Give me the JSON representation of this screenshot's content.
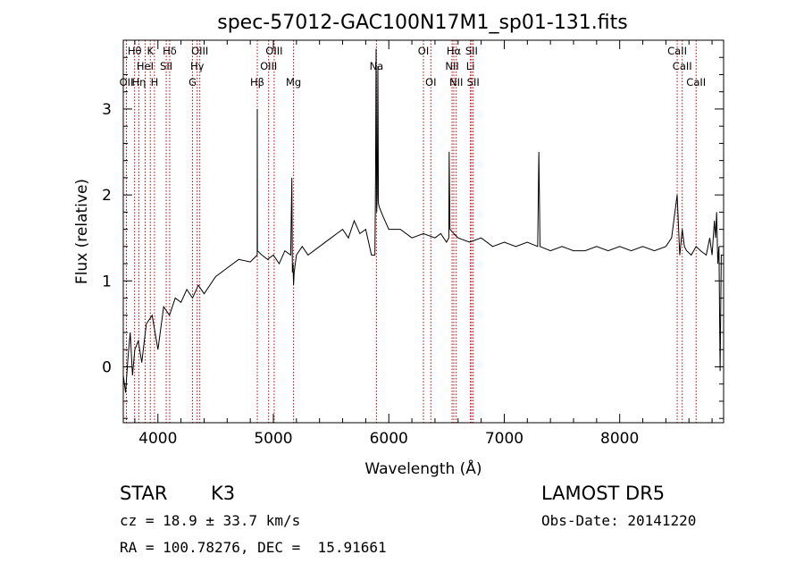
{
  "chart_data": {
    "type": "line",
    "title": "spec-57012-GAC100N17M1_sp01-131.fits",
    "xlabel": "Wavelength (Å)",
    "ylabel": "Flux (relative)",
    "xlim": [
      3700,
      8900
    ],
    "ylim": [
      -0.65,
      3.8
    ],
    "xticks": [
      4000,
      5000,
      6000,
      7000,
      8000
    ],
    "yticks": [
      0,
      1,
      2,
      3
    ],
    "grid": false,
    "series": [
      {
        "x": [
          3700,
          3720,
          3740,
          3760,
          3780,
          3800,
          3830,
          3860,
          3900,
          3950,
          4000,
          4050,
          4100,
          4150,
          4200,
          4250,
          4300,
          4350,
          4400,
          4500,
          4600,
          4700,
          4800,
          4860,
          4861,
          4862,
          4900,
          4950,
          5000,
          5050,
          5100,
          5150,
          5160,
          5165,
          5170,
          5175,
          5180,
          5200,
          5250,
          5300,
          5400,
          5500,
          5550,
          5600,
          5650,
          5700,
          5750,
          5800,
          5850,
          5880,
          5885,
          5890,
          5895,
          5900,
          5905,
          5910,
          5920,
          5950,
          6000,
          6100,
          6200,
          6300,
          6400,
          6450,
          6500,
          6520,
          6523,
          6530,
          6563,
          6600,
          6700,
          6800,
          6900,
          7000,
          7100,
          7200,
          7290,
          7300,
          7310,
          7400,
          7500,
          7600,
          7700,
          7800,
          7900,
          8000,
          8100,
          8200,
          8300,
          8400,
          8450,
          8498,
          8520,
          8542,
          8560,
          8580,
          8620,
          8662,
          8700,
          8750,
          8780,
          8800,
          8820,
          8830,
          8840,
          8850,
          8860,
          8870,
          8880,
          8900
        ],
        "y": [
          -0.1,
          -0.3,
          0.1,
          0.4,
          -0.1,
          0.2,
          0.3,
          0.05,
          0.5,
          0.6,
          0.2,
          0.7,
          0.6,
          0.8,
          0.75,
          0.9,
          0.8,
          0.95,
          0.85,
          1.05,
          1.15,
          1.25,
          1.22,
          1.3,
          3.0,
          1.35,
          1.3,
          1.25,
          1.3,
          1.2,
          1.35,
          1.3,
          2.2,
          1.1,
          1.2,
          0.95,
          1.1,
          1.3,
          1.4,
          1.3,
          1.4,
          1.5,
          1.55,
          1.6,
          1.5,
          1.7,
          1.55,
          1.6,
          1.3,
          1.3,
          2.2,
          3.7,
          1.8,
          2.0,
          3.5,
          1.9,
          1.85,
          1.75,
          1.6,
          1.6,
          1.5,
          1.55,
          1.5,
          1.55,
          1.45,
          1.5,
          2.5,
          1.6,
          1.55,
          1.5,
          1.45,
          1.5,
          1.4,
          1.45,
          1.4,
          1.45,
          1.4,
          2.5,
          1.4,
          1.35,
          1.4,
          1.35,
          1.35,
          1.4,
          1.35,
          1.4,
          1.35,
          1.4,
          1.35,
          1.4,
          1.5,
          2.0,
          1.3,
          1.6,
          1.4,
          1.35,
          1.3,
          1.4,
          1.35,
          1.3,
          1.5,
          1.3,
          1.7,
          1.5,
          1.8,
          1.2,
          1.4,
          -0.05,
          1.3,
          1.3
        ]
      }
    ],
    "lines": [
      {
        "w": 3727,
        "labels": [
          "OII"
        ],
        "tier": 3
      },
      {
        "w": 3798,
        "labels": [
          "Hθ"
        ],
        "tier": 1
      },
      {
        "w": 3835,
        "labels": [
          "Hη"
        ],
        "tier": 3
      },
      {
        "w": 3889,
        "labels": [
          "HeI"
        ],
        "tier": 2
      },
      {
        "w": 3934,
        "labels": [
          "K"
        ],
        "tier": 1
      },
      {
        "w": 3970,
        "labels": [
          "H"
        ],
        "tier": 3
      },
      {
        "w": 4072,
        "labels": [
          "SII"
        ],
        "tier": 2
      },
      {
        "w": 4102,
        "labels": [
          "Hδ"
        ],
        "tier": 1
      },
      {
        "w": 4300,
        "labels": [
          "G"
        ],
        "tier": 3
      },
      {
        "w": 4340,
        "labels": [
          "Hγ"
        ],
        "tier": 2
      },
      {
        "w": 4363,
        "labels": [
          "OIII"
        ],
        "tier": 1
      },
      {
        "w": 4861,
        "labels": [
          "Hβ"
        ],
        "tier": 3
      },
      {
        "w": 4959,
        "labels": [
          "OIII"
        ],
        "tier": 2
      },
      {
        "w": 5007,
        "labels": [
          "OIII"
        ],
        "tier": 1
      },
      {
        "w": 5175,
        "labels": [
          "Mg"
        ],
        "tier": 3
      },
      {
        "w": 5893,
        "labels": [
          "Na"
        ],
        "tier": 2
      },
      {
        "w": 6300,
        "labels": [
          "OI"
        ],
        "tier": 1
      },
      {
        "w": 6364,
        "labels": [
          "OI"
        ],
        "tier": 3
      },
      {
        "w": 6548,
        "labels": [
          "NII"
        ],
        "tier": 2
      },
      {
        "w": 6563,
        "labels": [
          "Hα"
        ],
        "tier": 1
      },
      {
        "w": 6584,
        "labels": [
          "NII"
        ],
        "tier": 3
      },
      {
        "w": 6707,
        "labels": [
          "Li"
        ],
        "tier": 2
      },
      {
        "w": 6717,
        "labels": [
          "SII"
        ],
        "tier": 1
      },
      {
        "w": 6731,
        "labels": [
          "SII"
        ],
        "tier": 3
      },
      {
        "w": 8498,
        "labels": [
          "CaII"
        ],
        "tier": 1
      },
      {
        "w": 8542,
        "labels": [
          "CaII"
        ],
        "tier": 2
      },
      {
        "w": 8662,
        "labels": [
          "CaII"
        ],
        "tier": 3
      }
    ]
  },
  "info": {
    "object_class": "STAR",
    "subclass": "K3",
    "survey": "LAMOST DR5",
    "cz": "cz = 18.9 ± 33.7 km/s",
    "obs_date": "Obs-Date: 20141220",
    "coords": "RA = 100.78276, DEC =  15.91661"
  }
}
